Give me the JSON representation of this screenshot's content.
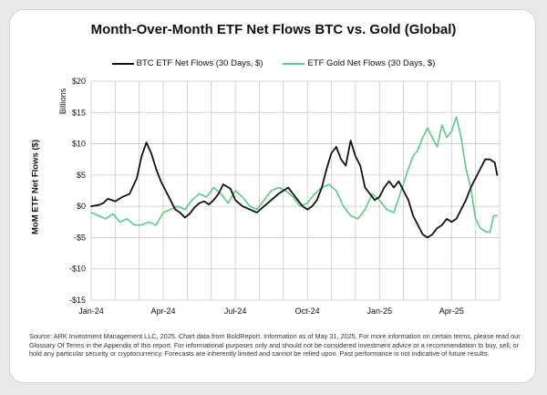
{
  "chart_data": {
    "type": "line",
    "title": "Month-Over-Month ETF Net Flows BTC vs. Gold (Global)",
    "ylabel": "MoM ETF Net Flows ($)",
    "y_unit_label": "Billions",
    "ylim": [
      -15,
      20
    ],
    "yticks": [
      20,
      15,
      10,
      5,
      0,
      -5,
      -10,
      -15
    ],
    "ytick_labels": [
      "$20",
      "$15",
      "$10",
      "$5",
      "$0",
      "-$5",
      "-$10",
      "-$15"
    ],
    "xlim": [
      0,
      17
    ],
    "xticks": [
      0,
      3,
      6,
      9,
      12,
      15
    ],
    "xtick_labels": [
      "Jan-24",
      "Apr-24",
      "Jul-24",
      "Oct-24",
      "Jan-25",
      "Apr-25"
    ],
    "grid": true,
    "legend_position": "top-center",
    "series": [
      {
        "name": "BTC ETF Net Flows (30 Days, $)",
        "color": "#111111",
        "x": [
          0,
          0.3,
          0.5,
          0.7,
          1.0,
          1.3,
          1.6,
          1.9,
          2.1,
          2.3,
          2.5,
          2.7,
          2.9,
          3.1,
          3.3,
          3.5,
          3.7,
          3.9,
          4.1,
          4.3,
          4.5,
          4.7,
          4.9,
          5.1,
          5.3,
          5.5,
          5.8,
          6.0,
          6.3,
          6.6,
          6.9,
          7.2,
          7.5,
          7.8,
          8.0,
          8.2,
          8.4,
          8.6,
          8.8,
          9.0,
          9.2,
          9.4,
          9.6,
          9.8,
          10.0,
          10.2,
          10.4,
          10.6,
          10.8,
          11.0,
          11.2,
          11.4,
          11.6,
          11.8,
          12.0,
          12.2,
          12.4,
          12.6,
          12.8,
          13.0,
          13.2,
          13.4,
          13.6,
          13.8,
          14.0,
          14.2,
          14.4,
          14.6,
          14.8,
          15.0,
          15.2,
          15.4,
          15.6,
          15.8,
          16.0,
          16.2,
          16.4,
          16.6,
          16.8,
          16.9
        ],
        "y": [
          0,
          0.2,
          0.5,
          1.2,
          0.8,
          1.5,
          2.0,
          4.5,
          8.0,
          10.2,
          8.5,
          6.0,
          4.0,
          2.5,
          1.0,
          -0.5,
          -1.0,
          -1.8,
          -1.2,
          -0.2,
          0.5,
          0.8,
          0.3,
          1.0,
          2.0,
          3.5,
          2.8,
          1.0,
          0.0,
          -0.5,
          -1.0,
          0.0,
          1.0,
          2.0,
          2.5,
          3.0,
          2.0,
          1.0,
          0.0,
          -0.5,
          0.0,
          1.0,
          3.0,
          6.0,
          8.5,
          9.5,
          7.5,
          6.5,
          10.5,
          8.0,
          6.5,
          3.0,
          2.0,
          1.0,
          1.5,
          3.0,
          4.0,
          3.0,
          4.0,
          2.5,
          1.0,
          -1.5,
          -3.0,
          -4.5,
          -5.0,
          -4.5,
          -3.5,
          -3.0,
          -2.0,
          -2.5,
          -2.0,
          -0.5,
          1.0,
          3.0,
          4.5,
          6.0,
          7.5,
          7.5,
          7.0,
          5.0
        ]
      },
      {
        "name": "ETF Gold Net Flows (30 Days, $)",
        "color": "#5ec98a",
        "x": [
          0,
          0.3,
          0.6,
          0.9,
          1.2,
          1.5,
          1.8,
          2.1,
          2.4,
          2.7,
          3.0,
          3.3,
          3.6,
          3.9,
          4.2,
          4.5,
          4.8,
          5.1,
          5.4,
          5.7,
          6.0,
          6.3,
          6.6,
          6.9,
          7.2,
          7.5,
          7.8,
          8.1,
          8.4,
          8.7,
          9.0,
          9.3,
          9.6,
          9.9,
          10.2,
          10.5,
          10.8,
          11.1,
          11.4,
          11.7,
          12.0,
          12.3,
          12.6,
          12.9,
          13.2,
          13.4,
          13.6,
          13.8,
          14.0,
          14.2,
          14.4,
          14.6,
          14.8,
          15.0,
          15.2,
          15.4,
          15.6,
          15.8,
          16.0,
          16.2,
          16.4,
          16.6,
          16.75,
          16.9
        ],
        "y": [
          -1.0,
          -1.5,
          -2.0,
          -1.2,
          -2.5,
          -2.0,
          -3.0,
          -3.0,
          -2.5,
          -3.0,
          -1.0,
          -0.5,
          0.0,
          -0.5,
          1.0,
          2.0,
          1.5,
          3.0,
          2.0,
          0.5,
          2.5,
          1.5,
          0.0,
          -0.5,
          1.0,
          2.5,
          3.0,
          2.5,
          1.5,
          0.0,
          0.5,
          2.0,
          3.0,
          3.5,
          2.5,
          0.0,
          -1.5,
          -2.0,
          -0.5,
          2.0,
          1.0,
          -0.5,
          -1.0,
          2.5,
          6.0,
          8.0,
          9.0,
          11.0,
          12.5,
          11.0,
          9.5,
          13.0,
          11.0,
          12.0,
          14.3,
          11.0,
          6.0,
          3.0,
          -2.0,
          -3.5,
          -4.0,
          -4.2,
          -1.5,
          -1.5
        ]
      }
    ]
  },
  "footnote": "Source: ARK Investment Management LLC, 2025. Chart data from BoldReport. Information as of May 31, 2025. For more information on certain terms, please read our Glossary Of Terms in the Appendix of this report. For informational purposes only and should not be considered investment advice or a recommendation to buy, sell, or hold any particular security or cryptocurrency. Forecasts are inherently limited and cannot be relied upon. Past performance is not indicative of future results."
}
